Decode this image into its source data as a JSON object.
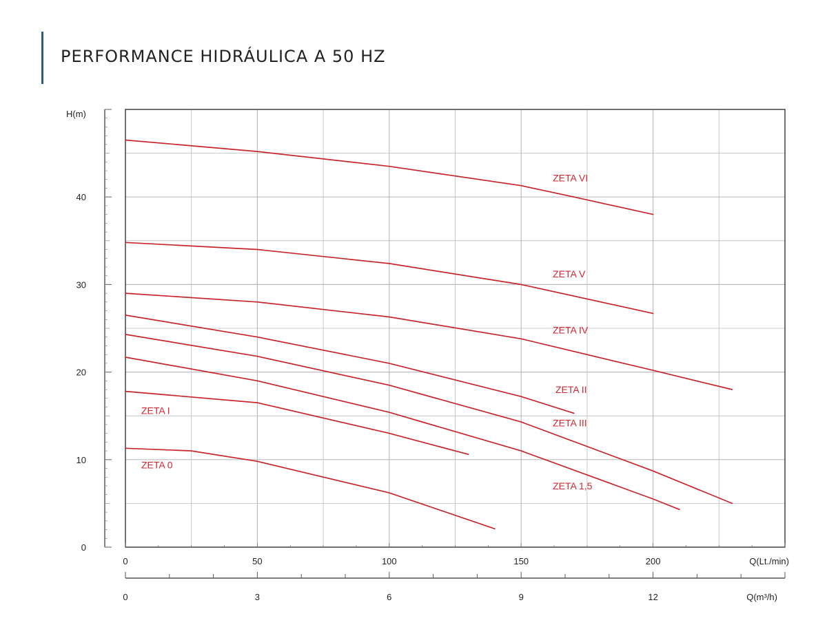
{
  "header": {
    "title": "PERFORMANCE HIDRÁULICA A 50 HZ",
    "accent_color": "#2f5f6e"
  },
  "chart_data": {
    "type": "line",
    "ylabel": "H(m)",
    "xlabel": "Q(Lt./min)",
    "x2label": "Q(m³/h)",
    "xlim": [
      0,
      250
    ],
    "ylim": [
      0,
      50
    ],
    "x_ticks": [
      0,
      50,
      100,
      150,
      200
    ],
    "x2_ticks": [
      0,
      3,
      6,
      9,
      12
    ],
    "y_ticks": [
      0,
      10,
      20,
      30,
      40
    ],
    "grid": true,
    "curve_color": "#c8252b",
    "series": [
      {
        "name": "ZETA VI",
        "x": [
          0,
          50,
          100,
          150,
          170,
          200
        ],
        "y": [
          46.5,
          45.2,
          43.5,
          41.3,
          40.0,
          38.0
        ]
      },
      {
        "name": "ZETA V",
        "x": [
          0,
          50,
          100,
          150,
          200
        ],
        "y": [
          34.8,
          34.0,
          32.4,
          30.0,
          26.7
        ]
      },
      {
        "name": "ZETA IV",
        "x": [
          0,
          50,
          100,
          150,
          200,
          230
        ],
        "y": [
          29.0,
          28.0,
          26.3,
          23.8,
          20.2,
          18.0
        ]
      },
      {
        "name": "ZETA II",
        "x": [
          0,
          50,
          100,
          150,
          170
        ],
        "y": [
          26.5,
          24.0,
          21.0,
          17.2,
          15.3
        ]
      },
      {
        "name": "ZETA III",
        "x": [
          0,
          50,
          100,
          150,
          200,
          230
        ],
        "y": [
          24.3,
          21.8,
          18.5,
          14.3,
          8.7,
          5.0
        ]
      },
      {
        "name": "ZETA 1,5",
        "x": [
          0,
          50,
          100,
          150,
          200,
          210
        ],
        "y": [
          21.7,
          19.0,
          15.4,
          11.0,
          5.5,
          4.3
        ]
      },
      {
        "name": "ZETA I",
        "x": [
          0,
          50,
          100,
          130
        ],
        "y": [
          17.8,
          16.5,
          13.0,
          10.6
        ]
      },
      {
        "name": "ZETA 0",
        "x": [
          0,
          25,
          50,
          100,
          140
        ],
        "y": [
          11.3,
          11.0,
          9.8,
          6.2,
          2.1
        ]
      }
    ],
    "annotations": [
      {
        "text": "ZETA VI",
        "x": 162,
        "y": 41.8
      },
      {
        "text": "ZETA V",
        "x": 162,
        "y": 30.8
      },
      {
        "text": "ZETA IV",
        "x": 162,
        "y": 24.4
      },
      {
        "text": "ZETA II",
        "x": 163,
        "y": 17.6
      },
      {
        "text": "ZETA III",
        "x": 162,
        "y": 13.8
      },
      {
        "text": "ZETA I",
        "x": 6,
        "y": 15.2
      },
      {
        "text": "ZETA 0",
        "x": 6,
        "y": 9.0
      },
      {
        "text": "ZETA 1,5",
        "x": 162,
        "y": 6.6
      }
    ]
  }
}
